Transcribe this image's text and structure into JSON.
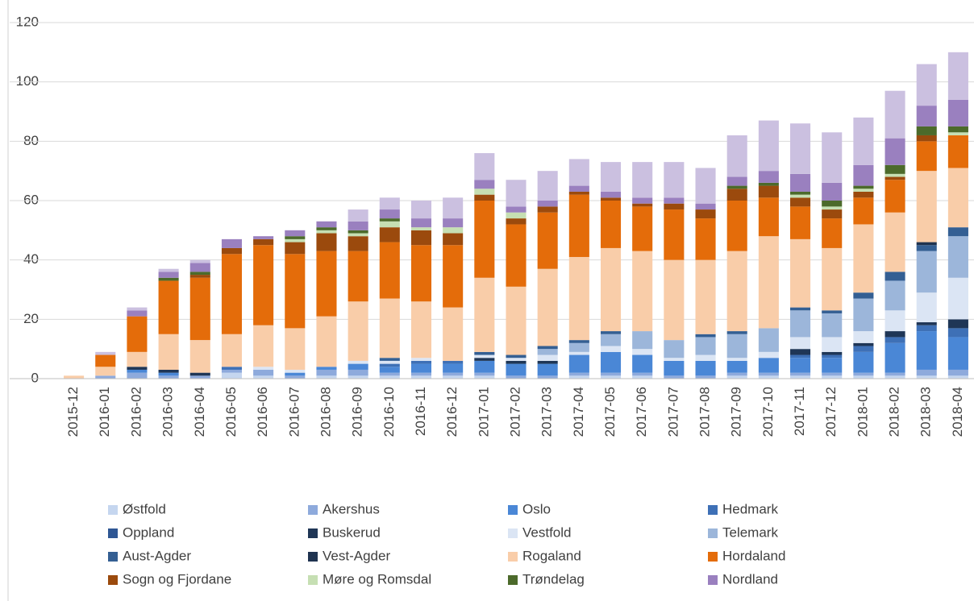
{
  "chart_data": {
    "type": "stacked_bar",
    "categories": [
      "2015-12",
      "2016-01",
      "2016-02",
      "2016-03",
      "2016-04",
      "2016-05",
      "2016-06",
      "2016-07",
      "2016-08",
      "2016-09",
      "2016-10",
      "2016-11",
      "2016-12",
      "2017-01",
      "2017-02",
      "2017-03",
      "2017-04",
      "2017-05",
      "2017-06",
      "2017-07",
      "2017-08",
      "2017-09",
      "2017-10",
      "2017-11",
      "2017-12",
      "2018-01",
      "2018-02",
      "2018-03",
      "2018-04"
    ],
    "ylim": [
      0,
      120
    ],
    "yticks": [
      0,
      20,
      40,
      60,
      80,
      100,
      120
    ],
    "grid": true,
    "legend": "bottom",
    "series": [
      {
        "name": "Østfold",
        "color": "#c5d6ef",
        "values": [
          0,
          0,
          0,
          0,
          0,
          2,
          1,
          0,
          1,
          1,
          1,
          1,
          1,
          1,
          0,
          0,
          1,
          1,
          1,
          0,
          0,
          1,
          1,
          1,
          1,
          1,
          1,
          1,
          1
        ]
      },
      {
        "name": "Akershus",
        "color": "#8eaadc",
        "values": [
          0,
          1,
          2,
          1,
          1,
          1,
          2,
          1,
          2,
          2,
          1,
          1,
          1,
          1,
          1,
          1,
          1,
          1,
          1,
          1,
          1,
          1,
          1,
          1,
          1,
          1,
          1,
          2,
          2
        ]
      },
      {
        "name": "Oslo",
        "color": "#4a87d6",
        "values": [
          0,
          0,
          1,
          1,
          0,
          0,
          0,
          1,
          1,
          2,
          2,
          3,
          3,
          4,
          4,
          4,
          6,
          7,
          6,
          5,
          5,
          4,
          5,
          5,
          5,
          7,
          10,
          13,
          11
        ]
      },
      {
        "name": "Hedmark",
        "color": "#3e70b6",
        "values": [
          0,
          0,
          0,
          0,
          0,
          1,
          0,
          0,
          0,
          0,
          1,
          1,
          1,
          0,
          0,
          0,
          0,
          0,
          0,
          0,
          0,
          0,
          0,
          1,
          1,
          2,
          2,
          2,
          3
        ]
      },
      {
        "name": "Oppland",
        "color": "#2f5794",
        "values": [
          0,
          0,
          0,
          0,
          0,
          0,
          0,
          0,
          0,
          0,
          0,
          0,
          0,
          0,
          0,
          0,
          0,
          0,
          0,
          0,
          0,
          0,
          0,
          0,
          0,
          0,
          0,
          0,
          0
        ]
      },
      {
        "name": "Buskerud",
        "color": "#1f3656",
        "values": [
          0,
          0,
          1,
          1,
          1,
          0,
          0,
          0,
          0,
          0,
          0,
          0,
          0,
          1,
          1,
          1,
          0,
          0,
          0,
          0,
          0,
          0,
          0,
          2,
          1,
          1,
          2,
          1,
          3
        ]
      },
      {
        "name": "Vestfold",
        "color": "#dbe5f4",
        "values": [
          0,
          0,
          0,
          0,
          0,
          0,
          1,
          1,
          0,
          1,
          1,
          1,
          0,
          1,
          1,
          2,
          1,
          2,
          2,
          1,
          2,
          1,
          2,
          4,
          5,
          4,
          7,
          10,
          14
        ]
      },
      {
        "name": "Telemark",
        "color": "#9cb6da",
        "values": [
          0,
          0,
          0,
          0,
          0,
          0,
          0,
          0,
          0,
          0,
          0,
          0,
          0,
          0,
          0,
          2,
          3,
          4,
          6,
          6,
          6,
          8,
          8,
          9,
          8,
          11,
          10,
          14,
          14
        ]
      },
      {
        "name": "Aust-Agder",
        "color": "#345f93",
        "values": [
          0,
          0,
          0,
          0,
          0,
          0,
          0,
          0,
          0,
          0,
          1,
          0,
          0,
          1,
          1,
          1,
          1,
          1,
          0,
          0,
          1,
          1,
          0,
          1,
          1,
          2,
          3,
          2,
          3
        ]
      },
      {
        "name": "Vest-Agder",
        "color": "#1f3350",
        "values": [
          0,
          0,
          0,
          0,
          0,
          0,
          0,
          0,
          0,
          0,
          0,
          0,
          0,
          0,
          0,
          0,
          0,
          0,
          0,
          0,
          0,
          0,
          0,
          0,
          0,
          0,
          0,
          1,
          0
        ]
      },
      {
        "name": "Rogaland",
        "color": "#f9cda9",
        "values": [
          1,
          3,
          5,
          12,
          11,
          11,
          14,
          14,
          17,
          20,
          20,
          19,
          18,
          25,
          23,
          26,
          28,
          28,
          27,
          27,
          25,
          27,
          31,
          23,
          21,
          23,
          20,
          24,
          20
        ]
      },
      {
        "name": "Hordaland",
        "color": "#e46c0a",
        "values": [
          0,
          4,
          12,
          18,
          21,
          27,
          27,
          25,
          22,
          17,
          19,
          19,
          21,
          26,
          21,
          19,
          21,
          16,
          15,
          17,
          14,
          17,
          13,
          11,
          10,
          9,
          11,
          10,
          11
        ]
      },
      {
        "name": "Sogn og Fjordane",
        "color": "#9b4a0d",
        "values": [
          0,
          0,
          0,
          0,
          1,
          2,
          2,
          4,
          6,
          5,
          5,
          5,
          4,
          2,
          2,
          2,
          1,
          1,
          1,
          2,
          3,
          4,
          4,
          3,
          3,
          2,
          1,
          2,
          0
        ]
      },
      {
        "name": "Møre og Romsdal",
        "color": "#c6dfb3",
        "values": [
          0,
          0,
          0,
          0,
          0,
          0,
          0,
          1,
          1,
          1,
          2,
          1,
          2,
          2,
          2,
          0,
          0,
          0,
          0,
          0,
          0,
          0,
          0,
          1,
          1,
          1,
          1,
          0,
          1
        ]
      },
      {
        "name": "Trøndelag",
        "color": "#4c6a2b",
        "values": [
          0,
          0,
          0,
          1,
          1,
          0,
          0,
          1,
          1,
          1,
          1,
          0,
          0,
          0,
          0,
          0,
          0,
          0,
          0,
          0,
          0,
          1,
          1,
          1,
          2,
          1,
          3,
          3,
          2
        ]
      },
      {
        "name": "Nordland",
        "color": "#9a80bf",
        "values": [
          0,
          0,
          2,
          2,
          3,
          3,
          1,
          2,
          2,
          3,
          3,
          3,
          3,
          3,
          2,
          2,
          2,
          2,
          2,
          2,
          2,
          3,
          4,
          6,
          6,
          7,
          9,
          7,
          9
        ]
      },
      {
        "color": "#cbc0e0",
        "values": [
          0,
          1,
          1,
          1,
          1,
          0,
          0,
          0,
          0,
          4,
          4,
          6,
          7,
          9,
          9,
          10,
          9,
          10,
          12,
          12,
          12,
          14,
          17,
          17,
          17,
          16,
          16,
          14,
          16
        ]
      }
    ]
  }
}
